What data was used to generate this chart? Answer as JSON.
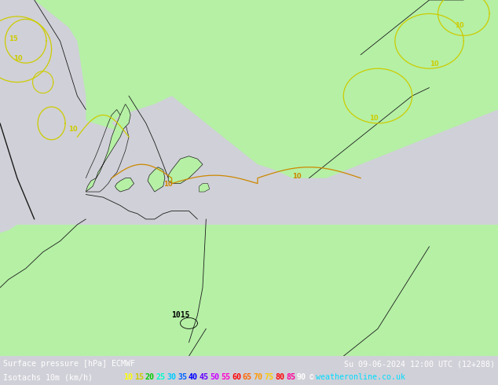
{
  "title_line1": "Surface pressure [hPa] ECMWF",
  "title_line1_right": "Su 09-06-2024 12:00 UTC (12+288)",
  "title_line2_label": "Isotachs 10m (km/h)",
  "copyright_symbol": "©",
  "copyright_site": "weatheronline.co.uk",
  "land_color": "#b5f0a5",
  "sea_color": "#d0d0d8",
  "border_color": "#1a1a1a",
  "bottom_bg": "#000000",
  "bottom_text_color": "#ffffff",
  "isotach_labels": [
    "10",
    "15",
    "20",
    "25",
    "30",
    "35",
    "40",
    "45",
    "50",
    "55",
    "60",
    "65",
    "70",
    "75",
    "80",
    "85",
    "90"
  ],
  "isotach_colors": [
    "#ffff00",
    "#cccc00",
    "#00cc00",
    "#00ffcc",
    "#00ccff",
    "#0066ff",
    "#0000ff",
    "#6600ff",
    "#cc00ff",
    "#ff00cc",
    "#ff0000",
    "#ff6600",
    "#ff9900",
    "#ffcc00",
    "#ff0000",
    "#ff0099",
    "#ffffff"
  ],
  "contour_yellow": "#cccc00",
  "contour_orange": "#cc8800",
  "fig_width": 6.34,
  "fig_height": 4.9,
  "dpi": 100
}
